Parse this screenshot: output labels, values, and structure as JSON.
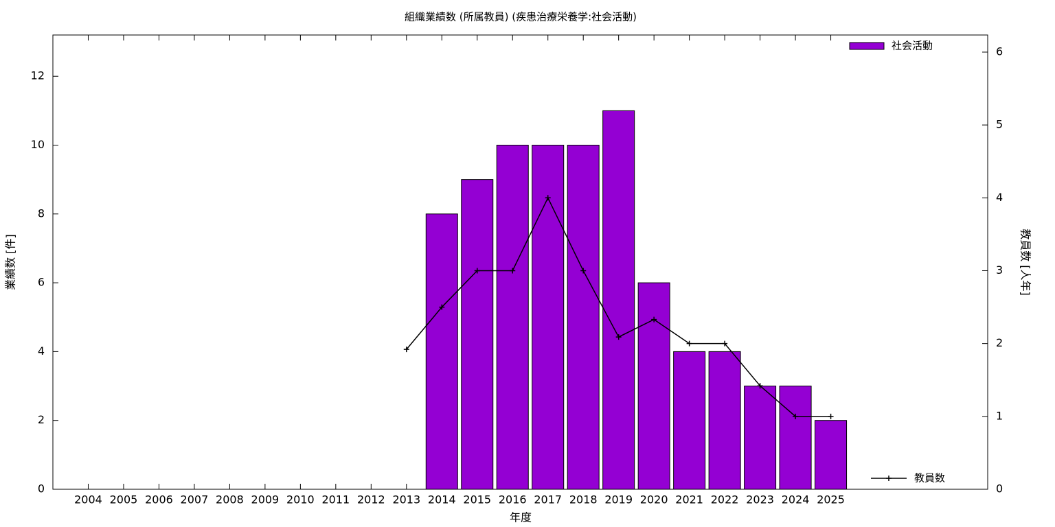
{
  "chart_data": {
    "type": "bar",
    "title": "組織業績数 (所属教員) (疾患治療栄養学:社会活動)",
    "x_label": "年度",
    "y_label": "業績数 [件]",
    "y2_label": "教員数 [人年]",
    "categories": [
      "2004",
      "2005",
      "2006",
      "2007",
      "2008",
      "2009",
      "2010",
      "2011",
      "2012",
      "2013",
      "2014",
      "2015",
      "2016",
      "2017",
      "2018",
      "2019",
      "2020",
      "2021",
      "2022",
      "2023",
      "2024",
      "2025"
    ],
    "series": [
      {
        "name": "社会活動",
        "type": "bar",
        "color": "#9400d3",
        "values": [
          null,
          null,
          null,
          null,
          null,
          null,
          null,
          null,
          null,
          null,
          8,
          9,
          10,
          10,
          10,
          11,
          6,
          4,
          4,
          3,
          3,
          2
        ]
      },
      {
        "name": "教員数",
        "type": "line",
        "axis": "y2",
        "color": "#000000",
        "values": [
          null,
          null,
          null,
          null,
          null,
          null,
          null,
          null,
          null,
          1.92,
          2.5,
          3,
          3,
          4,
          3,
          2.09,
          2.33,
          2,
          2,
          1.42,
          1,
          1
        ]
      }
    ],
    "ylim": [
      0,
      13.2
    ],
    "yticks": [
      0,
      2,
      4,
      6,
      8,
      10,
      12
    ],
    "y2lim": [
      0,
      6.235
    ],
    "y2ticks": [
      0,
      1,
      2,
      3,
      4,
      5,
      6
    ]
  }
}
